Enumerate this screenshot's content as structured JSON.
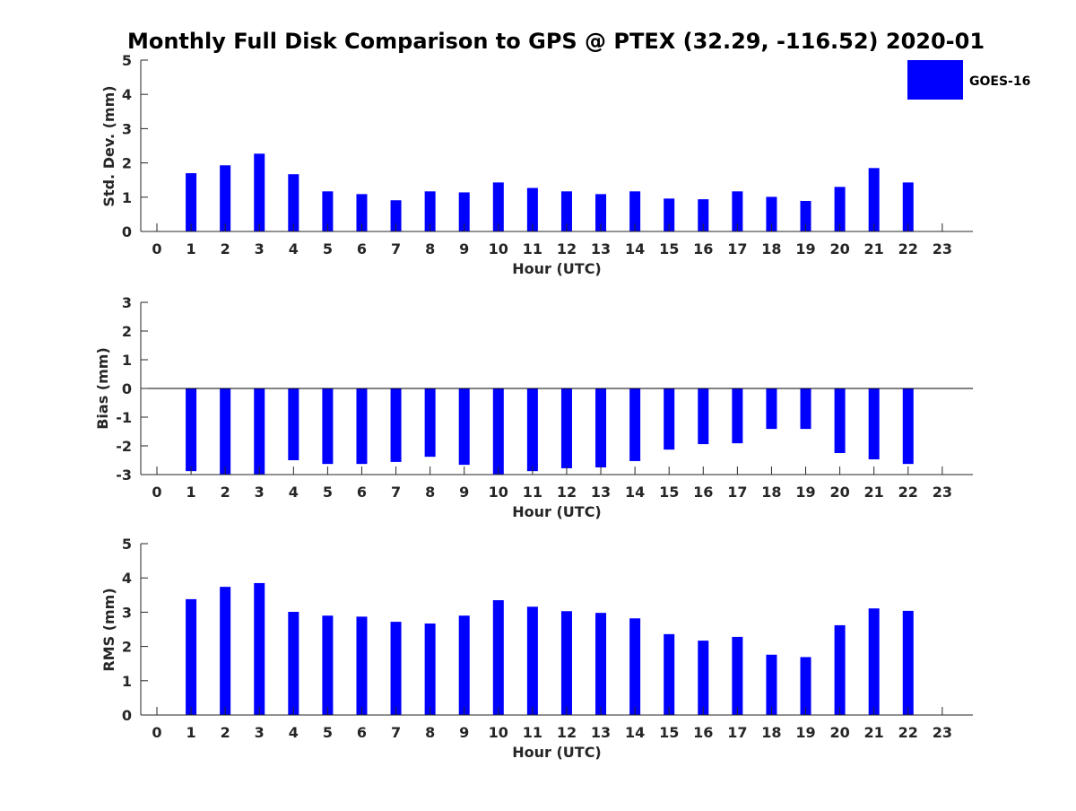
{
  "title": "Monthly Full Disk Comparison to GPS @ PTEX (32.29, -116.52) 2020-01",
  "legend": {
    "label": "GOES-16",
    "color": "#0000ff"
  },
  "chart_data": [
    {
      "type": "bar",
      "xlabel": "Hour (UTC)",
      "ylabel": "Std. Dev. (mm)",
      "ylim": [
        0,
        5
      ],
      "yticks": [
        "0",
        "1",
        "2",
        "3",
        "4",
        "5"
      ],
      "x": [
        "0",
        "1",
        "2",
        "3",
        "4",
        "5",
        "6",
        "7",
        "8",
        "9",
        "10",
        "11",
        "12",
        "13",
        "14",
        "15",
        "16",
        "17",
        "18",
        "19",
        "20",
        "21",
        "22",
        "23"
      ],
      "series": [
        {
          "name": "GOES-16",
          "values": [
            null,
            1.7,
            1.93,
            2.27,
            1.67,
            1.17,
            1.09,
            0.91,
            1.17,
            1.14,
            1.43,
            1.27,
            1.17,
            1.09,
            1.17,
            0.96,
            0.94,
            1.17,
            1.01,
            0.89,
            1.3,
            1.85,
            1.43,
            null
          ]
        }
      ]
    },
    {
      "type": "bar",
      "xlabel": "Hour (UTC)",
      "ylabel": "Bias (mm)",
      "ylim": [
        -3,
        3
      ],
      "yticks": [
        "-3",
        "-2",
        "-1",
        "0",
        "1",
        "2",
        "3"
      ],
      "x": [
        "0",
        "1",
        "2",
        "3",
        "4",
        "5",
        "6",
        "7",
        "8",
        "9",
        "10",
        "11",
        "12",
        "13",
        "14",
        "15",
        "16",
        "17",
        "18",
        "19",
        "20",
        "21",
        "22",
        "23"
      ],
      "series": [
        {
          "name": "GOES-16",
          "values": [
            null,
            -2.88,
            -3.0,
            -3.0,
            -2.5,
            -2.63,
            -2.63,
            -2.56,
            -2.38,
            -2.66,
            -3.0,
            -2.88,
            -2.78,
            -2.75,
            -2.53,
            -2.13,
            -1.94,
            -1.91,
            -1.41,
            -1.41,
            -2.25,
            -2.47,
            -2.63,
            null
          ]
        }
      ]
    },
    {
      "type": "bar",
      "xlabel": "Hour (UTC)",
      "ylabel": "RMS (mm)",
      "ylim": [
        0,
        5
      ],
      "yticks": [
        "0",
        "1",
        "2",
        "3",
        "4",
        "5"
      ],
      "x": [
        "0",
        "1",
        "2",
        "3",
        "4",
        "5",
        "6",
        "7",
        "8",
        "9",
        "10",
        "11",
        "12",
        "13",
        "14",
        "15",
        "16",
        "17",
        "18",
        "19",
        "20",
        "21",
        "22",
        "23"
      ],
      "series": [
        {
          "name": "GOES-16",
          "values": [
            null,
            3.38,
            3.74,
            3.85,
            3.01,
            2.9,
            2.87,
            2.72,
            2.67,
            2.9,
            3.35,
            3.16,
            3.03,
            2.98,
            2.82,
            2.36,
            2.17,
            2.28,
            1.76,
            1.69,
            2.62,
            3.11,
            3.04,
            null
          ]
        }
      ]
    }
  ]
}
